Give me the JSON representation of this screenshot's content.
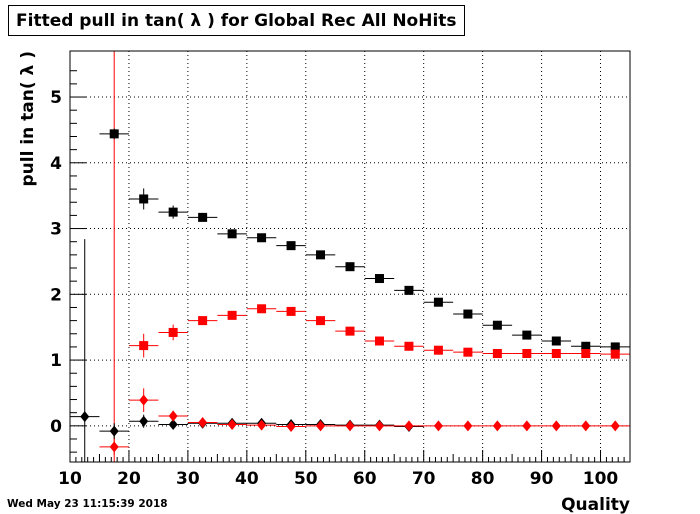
{
  "chart_data": {
    "type": "scatter",
    "title": "Fitted pull in tan( λ ) for Global Rec All NoHits",
    "xlabel": "Quality",
    "ylabel": "pull in tan( λ )",
    "xlim": [
      10,
      105
    ],
    "ylim": [
      -0.55,
      5.7
    ],
    "xticks": [
      "10",
      "20",
      "30",
      "40",
      "50",
      "60",
      "70",
      "80",
      "90",
      "100"
    ],
    "yticks": [
      "0",
      "1",
      "2",
      "3",
      "4",
      "5"
    ],
    "grid": true,
    "legend": "none",
    "vertical_line": {
      "x": 17.5,
      "color": "#ff0000"
    },
    "series": [
      {
        "marker": "square",
        "color": "#000000",
        "x": [
          17.5,
          22.5,
          27.5,
          32.5,
          37.5,
          42.5,
          47.5,
          52.5,
          57.5,
          62.5,
          67.5,
          72.5,
          77.5,
          82.5,
          87.5,
          92.5,
          97.5,
          102.5
        ],
        "y": [
          4.44,
          3.45,
          3.25,
          3.17,
          2.92,
          2.86,
          2.74,
          2.6,
          2.42,
          2.24,
          2.06,
          1.88,
          1.7,
          1.53,
          1.38,
          1.29,
          1.21,
          1.2
        ],
        "yerr": [
          0.08,
          0.16,
          0.1,
          0.06,
          0.05,
          0.05,
          0.04,
          0.04,
          0.04,
          0.04,
          0.04,
          0.04,
          0.04,
          0.04,
          0.04,
          0.04,
          0.04,
          0.04
        ]
      },
      {
        "marker": "square",
        "color": "#ff0000",
        "x": [
          22.5,
          27.5,
          32.5,
          37.5,
          42.5,
          47.5,
          52.5,
          57.5,
          62.5,
          67.5,
          72.5,
          77.5,
          82.5,
          87.5,
          92.5,
          97.5,
          102.5
        ],
        "y": [
          1.22,
          1.42,
          1.6,
          1.68,
          1.78,
          1.74,
          1.6,
          1.44,
          1.29,
          1.21,
          1.15,
          1.12,
          1.1,
          1.1,
          1.1,
          1.1,
          1.09
        ],
        "yerr": [
          0.18,
          0.12,
          0.06,
          0.05,
          0.05,
          0.05,
          0.04,
          0.04,
          0.04,
          0.04,
          0.03,
          0.03,
          0.03,
          0.03,
          0.03,
          0.03,
          0.03
        ]
      },
      {
        "marker": "diamond",
        "color": "#000000",
        "x": [
          12.5,
          17.5,
          22.5,
          27.5,
          32.5,
          37.5,
          42.5,
          47.5,
          52.5,
          57.5,
          62.5,
          67.5
        ],
        "y": [
          0.14,
          -0.08,
          0.07,
          0.02,
          0.04,
          0.04,
          0.04,
          0.02,
          0.02,
          0.01,
          0.01,
          -0.01
        ],
        "yerr": [
          2.7,
          0.12,
          0.1,
          0.05,
          0.04,
          0.03,
          0.03,
          0.03,
          0.03,
          0.02,
          0.02,
          0.02
        ]
      },
      {
        "marker": "diamond",
        "color": "#ff0000",
        "x": [
          17.5,
          22.5,
          27.5,
          32.5,
          37.5,
          42.5,
          47.5,
          52.5,
          57.5,
          62.5,
          67.5,
          72.5,
          77.5,
          82.5,
          87.5,
          92.5,
          97.5,
          102.5
        ],
        "y": [
          -0.32,
          0.39,
          0.15,
          0.05,
          0.02,
          0.01,
          -0.01,
          0.0,
          0.0,
          0.0,
          0.0,
          0.0,
          0.0,
          0.0,
          0.0,
          0.0,
          0.0,
          0.0
        ],
        "yerr": [
          0.12,
          0.18,
          0.08,
          0.04,
          0.03,
          0.03,
          0.02,
          0.02,
          0.02,
          0.02,
          0.02,
          0.02,
          0.02,
          0.02,
          0.02,
          0.02,
          0.02,
          0.02
        ]
      }
    ]
  },
  "timestamp": "Wed May 23 11:15:39 2018"
}
